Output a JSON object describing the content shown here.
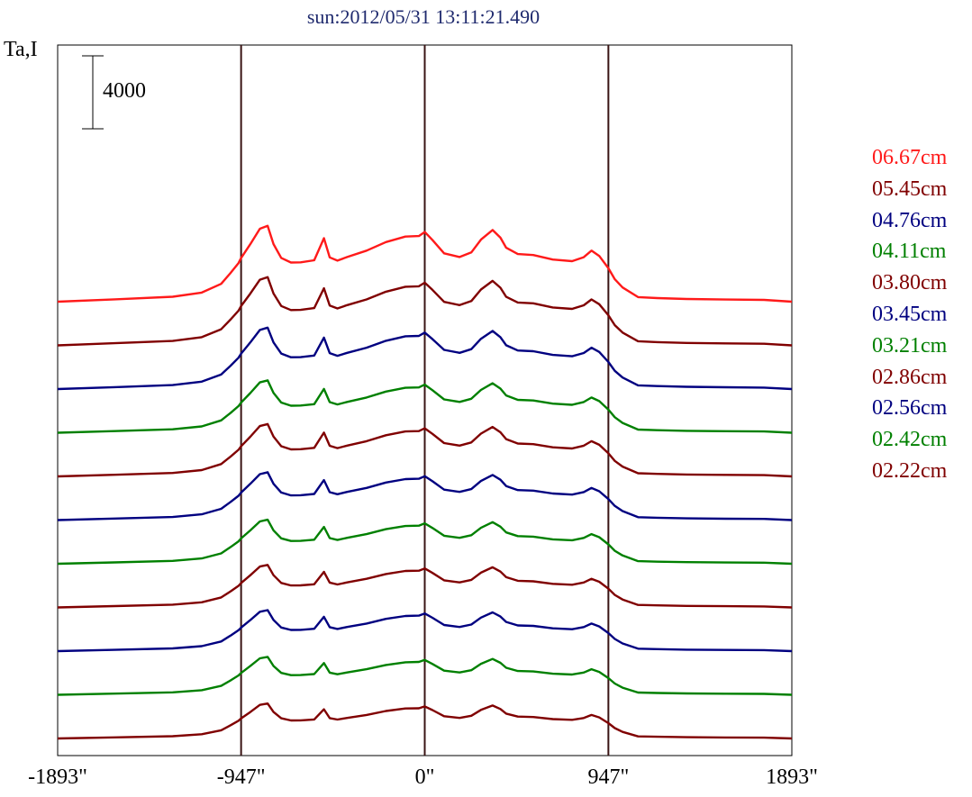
{
  "chart_data": {
    "type": "line",
    "title": "sun:2012/05/31 13:11:21.490",
    "ylabel": "Ta,I",
    "scale_bar_label": "4000",
    "scale_bar_value": 4000,
    "xlim": [
      -1893,
      1893
    ],
    "x_ticks": [
      {
        "value": -1893,
        "label": "-1893\""
      },
      {
        "value": -947,
        "label": "-947\""
      },
      {
        "value": 0,
        "label": "0\""
      },
      {
        "value": 947,
        "label": "947\""
      },
      {
        "value": 1893,
        "label": "1893\""
      }
    ],
    "vertical_lines": [
      -947,
      0,
      947
    ],
    "grid": false,
    "legend_position": "right",
    "profile_x": [
      -1893,
      -1600,
      -1300,
      -1150,
      -1050,
      -1000,
      -960,
      -947,
      -900,
      -850,
      -810,
      -780,
      -740,
      -690,
      -640,
      -570,
      -520,
      -490,
      -450,
      -400,
      -300,
      -200,
      -100,
      -30,
      0,
      40,
      100,
      180,
      240,
      290,
      350,
      390,
      420,
      480,
      560,
      660,
      760,
      820,
      860,
      900,
      947,
      980,
      1020,
      1100,
      1200,
      1350,
      1550,
      1750,
      1893
    ],
    "series": [
      {
        "name": "06.67cm",
        "color": "#ff1a1a",
        "offset": 0,
        "amp": 1.0,
        "values": [
          0,
          130,
          270,
          500,
          980,
          1590,
          2120,
          2390,
          3150,
          4000,
          4160,
          3160,
          2400,
          2150,
          2160,
          2270,
          3480,
          2430,
          2250,
          2450,
          2800,
          3270,
          3570,
          3600,
          3820,
          3380,
          2650,
          2450,
          2700,
          3400,
          3930,
          3510,
          2960,
          2610,
          2560,
          2310,
          2220,
          2440,
          2800,
          2510,
          1830,
          1230,
          780,
          250,
          200,
          150,
          120,
          100,
          0
        ]
      },
      {
        "name": "05.45cm",
        "color": "#800000",
        "offset": 2000,
        "amp": 0.9
      },
      {
        "name": "04.76cm",
        "color": "#000080",
        "offset": 4000,
        "amp": 0.81
      },
      {
        "name": "04.11cm",
        "color": "#008000",
        "offset": 6000,
        "amp": 0.69
      },
      {
        "name": "03.80cm",
        "color": "#800000",
        "offset": 8000,
        "amp": 0.69
      },
      {
        "name": "03.45cm",
        "color": "#000080",
        "offset": 10000,
        "amp": 0.63
      },
      {
        "name": "03.21cm",
        "color": "#008000",
        "offset": 12000,
        "amp": 0.58
      },
      {
        "name": "02.86cm",
        "color": "#800000",
        "offset": 14000,
        "amp": 0.56
      },
      {
        "name": "02.56cm",
        "color": "#000080",
        "offset": 16000,
        "amp": 0.54
      },
      {
        "name": "02.42cm",
        "color": "#008000",
        "offset": 18000,
        "amp": 0.5
      },
      {
        "name": "02.22cm",
        "color": "#800000",
        "offset": 20000,
        "amp": 0.46
      }
    ]
  }
}
